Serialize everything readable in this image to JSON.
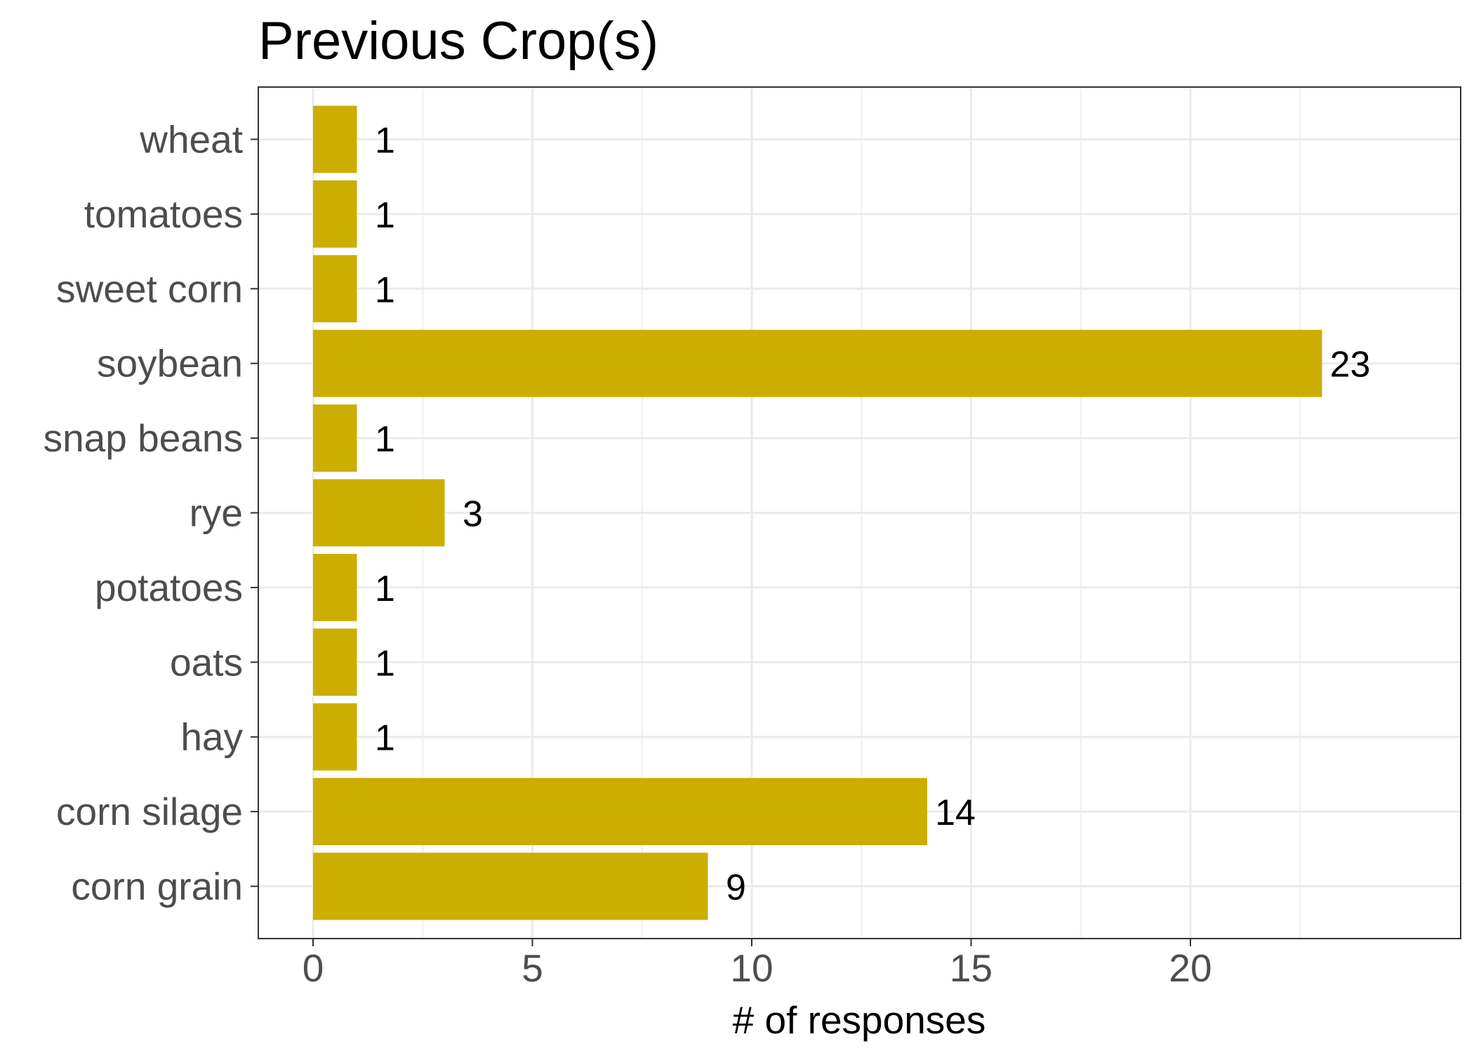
{
  "chart_data": {
    "type": "bar",
    "orientation": "horizontal",
    "title": "Previous Crop(s)",
    "xlabel": "# of responses",
    "ylabel": "",
    "categories": [
      "corn grain",
      "corn silage",
      "hay",
      "oats",
      "potatoes",
      "rye",
      "snap beans",
      "soybean",
      "sweet corn",
      "tomatoes",
      "wheat"
    ],
    "values": [
      9,
      14,
      1,
      1,
      1,
      3,
      1,
      23,
      1,
      1,
      1
    ],
    "xlim": [
      0,
      25
    ],
    "x_ticks": [
      "0",
      "5",
      "10",
      "15",
      "20"
    ],
    "bar_color": "#CCAE00",
    "grid": true,
    "legend": "none"
  }
}
